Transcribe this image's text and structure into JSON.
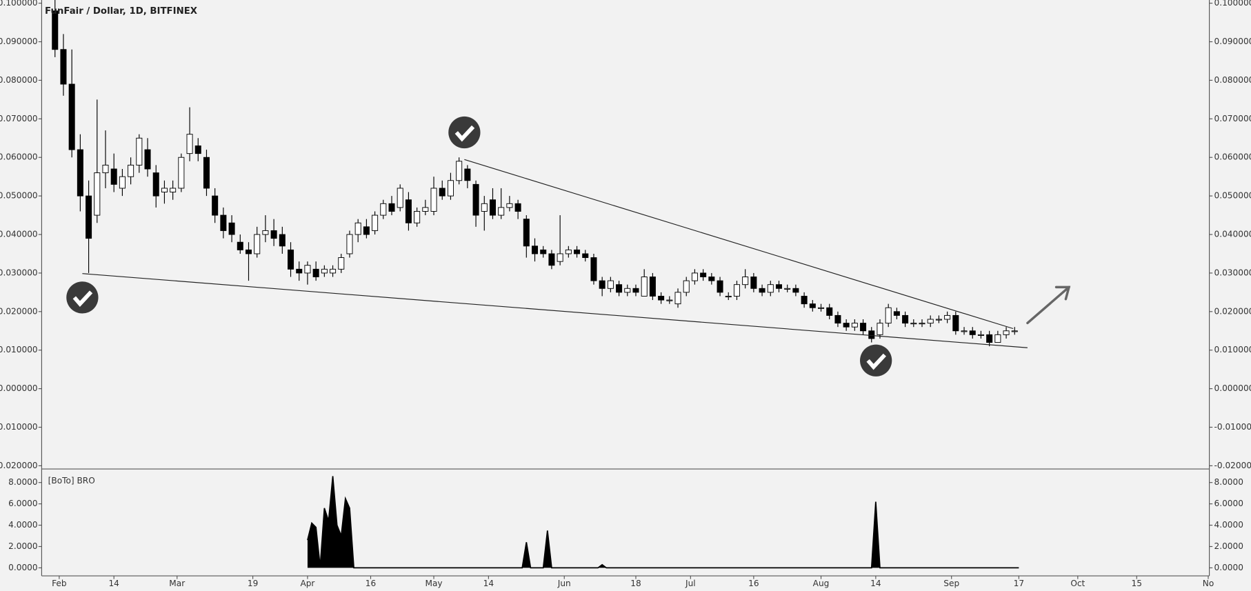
{
  "chart_data": {
    "type": "candlestick",
    "title": "FunFair / Dollar, 1D, BITFINEX",
    "xlim": [
      -4.17,
      273.26
    ],
    "xticks": [
      {
        "value": 0,
        "label": "Feb"
      },
      {
        "value": 13,
        "label": "14"
      },
      {
        "value": 28,
        "label": "Mar"
      },
      {
        "value": 46,
        "label": "19"
      },
      {
        "value": 59,
        "label": "Apr"
      },
      {
        "value": 74,
        "label": "16"
      },
      {
        "value": 89,
        "label": "May"
      },
      {
        "value": 102,
        "label": "14"
      },
      {
        "value": 120,
        "label": "Jun"
      },
      {
        "value": 137,
        "label": "18"
      },
      {
        "value": 150,
        "label": "Jul"
      },
      {
        "value": 165,
        "label": "16"
      },
      {
        "value": 181,
        "label": "Aug"
      },
      {
        "value": 194,
        "label": "14"
      },
      {
        "value": 212,
        "label": "Sep"
      },
      {
        "value": 228,
        "label": "17"
      },
      {
        "value": 242,
        "label": "Oct"
      },
      {
        "value": 256,
        "label": "15"
      },
      {
        "value": 273,
        "label": "No"
      }
    ],
    "ylim": [
      -0.02083,
      0.10083
    ],
    "yticks": [
      {
        "value": 0.1,
        "label": "0.100000"
      },
      {
        "value": 0.09,
        "label": "0.090000"
      },
      {
        "value": 0.08,
        "label": "0.080000"
      },
      {
        "value": 0.07,
        "label": "0.070000"
      },
      {
        "value": 0.06,
        "label": "0.060000"
      },
      {
        "value": 0.05,
        "label": "0.050000"
      },
      {
        "value": 0.04,
        "label": "0.040000"
      },
      {
        "value": 0.03,
        "label": "0.030000"
      },
      {
        "value": 0.02,
        "label": "0.020000"
      },
      {
        "value": 0.01,
        "label": "0.010000"
      },
      {
        "value": 0,
        "label": "0.000000"
      },
      {
        "value": -0.01,
        "label": "-0.010000"
      },
      {
        "value": -0.02,
        "label": "-0.020000"
      }
    ],
    "candles": [
      [
        -1,
        0.098,
        0.101,
        0.086,
        0.088
      ],
      [
        1,
        0.088,
        0.092,
        0.076,
        0.079
      ],
      [
        3,
        0.079,
        0.088,
        0.06,
        0.062
      ],
      [
        5,
        0.062,
        0.066,
        0.046,
        0.05
      ],
      [
        7,
        0.05,
        0.054,
        0.03,
        0.039
      ],
      [
        9,
        0.045,
        0.075,
        0.043,
        0.056
      ],
      [
        11,
        0.056,
        0.067,
        0.052,
        0.058
      ],
      [
        13,
        0.057,
        0.061,
        0.051,
        0.053
      ],
      [
        15,
        0.052,
        0.057,
        0.05,
        0.055
      ],
      [
        17,
        0.055,
        0.06,
        0.053,
        0.058
      ],
      [
        19,
        0.058,
        0.066,
        0.056,
        0.065
      ],
      [
        21,
        0.062,
        0.065,
        0.055,
        0.057
      ],
      [
        23,
        0.056,
        0.058,
        0.047,
        0.05
      ],
      [
        25,
        0.051,
        0.054,
        0.048,
        0.052
      ],
      [
        27,
        0.051,
        0.054,
        0.049,
        0.052
      ],
      [
        29,
        0.052,
        0.061,
        0.051,
        0.06
      ],
      [
        31,
        0.061,
        0.073,
        0.059,
        0.066
      ],
      [
        33,
        0.063,
        0.065,
        0.059,
        0.061
      ],
      [
        35,
        0.06,
        0.062,
        0.05,
        0.052
      ],
      [
        37,
        0.05,
        0.052,
        0.043,
        0.045
      ],
      [
        39,
        0.045,
        0.047,
        0.039,
        0.041
      ],
      [
        41,
        0.043,
        0.045,
        0.038,
        0.04
      ],
      [
        43,
        0.038,
        0.04,
        0.035,
        0.036
      ],
      [
        45,
        0.036,
        0.038,
        0.028,
        0.035
      ],
      [
        47,
        0.035,
        0.042,
        0.034,
        0.04
      ],
      [
        49,
        0.04,
        0.045,
        0.038,
        0.041
      ],
      [
        51,
        0.041,
        0.044,
        0.037,
        0.039
      ],
      [
        53,
        0.04,
        0.042,
        0.035,
        0.037
      ],
      [
        55,
        0.036,
        0.038,
        0.029,
        0.031
      ],
      [
        57,
        0.031,
        0.033,
        0.028,
        0.03
      ],
      [
        59,
        0.03,
        0.033,
        0.027,
        0.032
      ],
      [
        61,
        0.031,
        0.033,
        0.028,
        0.029
      ],
      [
        63,
        0.03,
        0.032,
        0.029,
        0.031
      ],
      [
        65,
        0.03,
        0.032,
        0.029,
        0.031
      ],
      [
        67,
        0.031,
        0.035,
        0.03,
        0.034
      ],
      [
        69,
        0.035,
        0.041,
        0.034,
        0.04
      ],
      [
        71,
        0.04,
        0.044,
        0.038,
        0.043
      ],
      [
        73,
        0.042,
        0.044,
        0.039,
        0.04
      ],
      [
        75,
        0.041,
        0.046,
        0.04,
        0.045
      ],
      [
        77,
        0.045,
        0.049,
        0.044,
        0.048
      ],
      [
        79,
        0.048,
        0.05,
        0.045,
        0.046
      ],
      [
        81,
        0.047,
        0.053,
        0.046,
        0.052
      ],
      [
        83,
        0.049,
        0.051,
        0.041,
        0.043
      ],
      [
        85,
        0.043,
        0.047,
        0.042,
        0.046
      ],
      [
        87,
        0.046,
        0.049,
        0.045,
        0.047
      ],
      [
        89,
        0.046,
        0.055,
        0.045,
        0.052
      ],
      [
        91,
        0.052,
        0.054,
        0.049,
        0.05
      ],
      [
        93,
        0.05,
        0.056,
        0.049,
        0.054
      ],
      [
        95,
        0.054,
        0.06,
        0.053,
        0.059
      ],
      [
        97,
        0.057,
        0.058,
        0.052,
        0.054
      ],
      [
        99,
        0.053,
        0.054,
        0.042,
        0.045
      ],
      [
        101,
        0.046,
        0.05,
        0.041,
        0.048
      ],
      [
        103,
        0.049,
        0.052,
        0.044,
        0.045
      ],
      [
        105,
        0.045,
        0.052,
        0.044,
        0.047
      ],
      [
        107,
        0.047,
        0.05,
        0.046,
        0.048
      ],
      [
        109,
        0.048,
        0.049,
        0.044,
        0.046
      ],
      [
        111,
        0.044,
        0.045,
        0.034,
        0.037
      ],
      [
        113,
        0.037,
        0.039,
        0.033,
        0.035
      ],
      [
        115,
        0.036,
        0.037,
        0.034,
        0.035
      ],
      [
        117,
        0.035,
        0.036,
        0.031,
        0.032
      ],
      [
        119,
        0.033,
        0.045,
        0.032,
        0.035
      ],
      [
        121,
        0.035,
        0.037,
        0.034,
        0.036
      ],
      [
        123,
        0.036,
        0.037,
        0.034,
        0.035
      ],
      [
        125,
        0.035,
        0.036,
        0.033,
        0.034
      ],
      [
        127,
        0.034,
        0.035,
        0.027,
        0.028
      ],
      [
        129,
        0.028,
        0.029,
        0.024,
        0.026
      ],
      [
        131,
        0.026,
        0.029,
        0.025,
        0.028
      ],
      [
        133,
        0.027,
        0.028,
        0.024,
        0.025
      ],
      [
        135,
        0.025,
        0.027,
        0.024,
        0.026
      ],
      [
        137,
        0.026,
        0.027,
        0.024,
        0.025
      ],
      [
        139,
        0.024,
        0.031,
        0.024,
        0.029
      ],
      [
        141,
        0.029,
        0.03,
        0.023,
        0.024
      ],
      [
        143,
        0.024,
        0.025,
        0.022,
        0.023
      ],
      [
        145,
        0.023,
        0.024,
        0.022,
        0.023
      ],
      [
        147,
        0.022,
        0.026,
        0.021,
        0.025
      ],
      [
        149,
        0.025,
        0.029,
        0.024,
        0.028
      ],
      [
        151,
        0.028,
        0.031,
        0.027,
        0.03
      ],
      [
        153,
        0.03,
        0.031,
        0.028,
        0.029
      ],
      [
        155,
        0.029,
        0.03,
        0.027,
        0.028
      ],
      [
        157,
        0.028,
        0.029,
        0.024,
        0.025
      ],
      [
        159,
        0.024,
        0.025,
        0.023,
        0.024
      ],
      [
        161,
        0.024,
        0.028,
        0.023,
        0.027
      ],
      [
        163,
        0.027,
        0.031,
        0.026,
        0.029
      ],
      [
        165,
        0.029,
        0.03,
        0.025,
        0.026
      ],
      [
        167,
        0.026,
        0.027,
        0.024,
        0.025
      ],
      [
        169,
        0.025,
        0.028,
        0.024,
        0.027
      ],
      [
        171,
        0.027,
        0.028,
        0.025,
        0.026
      ],
      [
        173,
        0.026,
        0.027,
        0.025,
        0.026
      ],
      [
        175,
        0.026,
        0.027,
        0.024,
        0.025
      ],
      [
        177,
        0.024,
        0.025,
        0.021,
        0.022
      ],
      [
        179,
        0.022,
        0.023,
        0.02,
        0.021
      ],
      [
        181,
        0.021,
        0.022,
        0.02,
        0.021
      ],
      [
        183,
        0.021,
        0.022,
        0.018,
        0.019
      ],
      [
        185,
        0.019,
        0.02,
        0.016,
        0.017
      ],
      [
        187,
        0.017,
        0.018,
        0.015,
        0.016
      ],
      [
        189,
        0.016,
        0.018,
        0.015,
        0.017
      ],
      [
        191,
        0.017,
        0.018,
        0.014,
        0.015
      ],
      [
        193,
        0.015,
        0.016,
        0.012,
        0.013
      ],
      [
        195,
        0.014,
        0.018,
        0.013,
        0.017
      ],
      [
        197,
        0.017,
        0.022,
        0.016,
        0.021
      ],
      [
        199,
        0.02,
        0.021,
        0.018,
        0.019
      ],
      [
        201,
        0.019,
        0.02,
        0.016,
        0.017
      ],
      [
        203,
        0.017,
        0.018,
        0.016,
        0.017
      ],
      [
        205,
        0.017,
        0.018,
        0.016,
        0.017
      ],
      [
        207,
        0.017,
        0.019,
        0.016,
        0.018
      ],
      [
        209,
        0.018,
        0.019,
        0.017,
        0.018
      ],
      [
        211,
        0.018,
        0.02,
        0.017,
        0.019
      ],
      [
        213,
        0.019,
        0.02,
        0.014,
        0.015
      ],
      [
        215,
        0.015,
        0.016,
        0.014,
        0.015
      ],
      [
        217,
        0.015,
        0.016,
        0.013,
        0.014
      ],
      [
        219,
        0.014,
        0.015,
        0.013,
        0.014
      ],
      [
        221,
        0.014,
        0.015,
        0.011,
        0.012
      ],
      [
        223,
        0.012,
        0.015,
        0.012,
        0.014
      ],
      [
        225,
        0.014,
        0.016,
        0.013,
        0.015
      ],
      [
        227,
        0.015,
        0.016,
        0.014,
        0.015
      ]
    ],
    "indicator": {
      "type": "area",
      "name": "[BoTo] BRO",
      "color": "#000000",
      "ylim": [
        -0.75,
        9.27
      ],
      "yticks": [
        {
          "value": 8,
          "label": "8.0000"
        },
        {
          "value": 6,
          "label": "6.0000"
        },
        {
          "value": 4,
          "label": "4.0000"
        },
        {
          "value": 2,
          "label": "2.0000"
        },
        {
          "value": 0,
          "label": "0.0000"
        }
      ],
      "x": [
        59,
        60,
        61,
        62,
        63,
        64,
        65,
        66,
        67,
        68,
        69,
        70,
        110,
        111,
        112,
        115,
        116,
        117,
        128,
        129,
        130,
        193,
        194,
        195,
        228
      ],
      "values": [
        2.6,
        4.2,
        3.8,
        0.1,
        5.6,
        4.4,
        8.6,
        4.0,
        3.0,
        6.5,
        5.6,
        0,
        0,
        2.4,
        0,
        0,
        3.5,
        0,
        0,
        0.3,
        0,
        0,
        6.2,
        0,
        0
      ]
    }
  }
}
